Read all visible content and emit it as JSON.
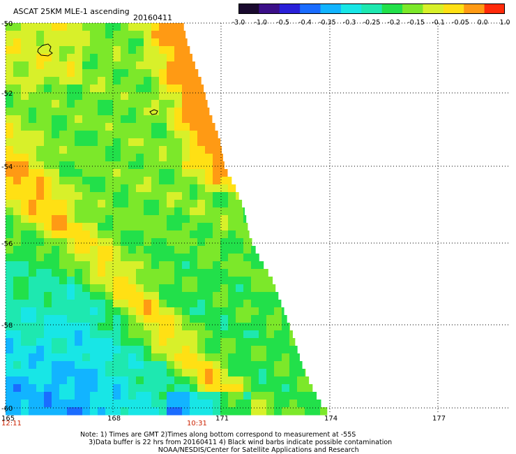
{
  "header": {
    "title": "ASCAT 25KM MLE-1 ascending",
    "date": "20160411"
  },
  "colorbar": {
    "labels": [
      "-3.0",
      "-1.0",
      "-0.5",
      "-0.4",
      "-0.35",
      "-0.3",
      "-0.25",
      "-0.2",
      "-0.15",
      "-0.1",
      "-0.05",
      "0.0",
      "1.0"
    ],
    "colors": [
      "#1a0a2e",
      "#3b0f88",
      "#2a20d8",
      "#1a6cff",
      "#12b4ff",
      "#18e6e6",
      "#1ee8b0",
      "#22e04a",
      "#7ce82a",
      "#d8f02a",
      "#ffe014",
      "#ff9a14",
      "#ff2a0a"
    ]
  },
  "map": {
    "lat_labels": [
      "-50",
      "-52",
      "-54",
      "-56",
      "-58",
      "-60"
    ],
    "lon_labels": [
      "165",
      "168",
      "171",
      "174",
      "177"
    ],
    "time_labels": [
      "12:11",
      "10:31"
    ],
    "time_color": "#cc2200",
    "grid": true,
    "swath_values": "MLE-1 residual field, ascending pass"
  },
  "footer": {
    "line1": "Note: 1) Times are GMT 2)Times along bottom correspond to measurement at -55S",
    "line2": "3)Data buffer is 22 hrs from 20160411 4) Black wind barbs indicate possible contamination",
    "line3": "NOAA/NESDIS/Center for Satellite Applications and Research"
  }
}
